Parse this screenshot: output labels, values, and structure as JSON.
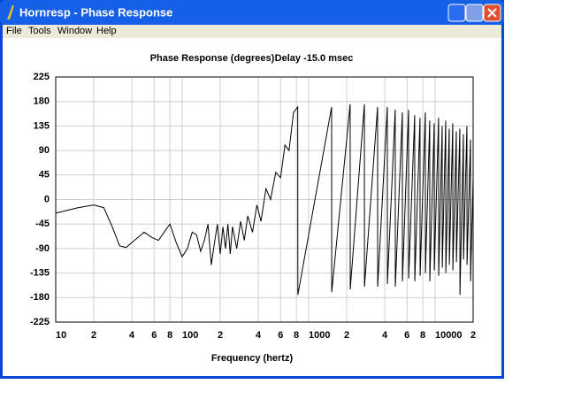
{
  "window": {
    "title": "Hornresp - Phase Response"
  },
  "menu": [
    "File",
    "Tools",
    "Window",
    "Help"
  ],
  "chart_data": {
    "type": "line",
    "title": "Phase Response (degrees)",
    "annotation": "Delay -15.0 msec",
    "x_label": "Frequency (hertz)",
    "xscale": "log",
    "grid": true,
    "xlim": [
      10,
      20000
    ],
    "ylim": [
      -225,
      225
    ],
    "xticks": [
      10,
      {
        "value": 20,
        "label": "2"
      },
      {
        "value": 40,
        "label": "4"
      },
      {
        "value": 60,
        "label": "6"
      },
      {
        "value": 80,
        "label": "8"
      },
      100,
      {
        "value": 200,
        "label": "2"
      },
      {
        "value": 400,
        "label": "4"
      },
      {
        "value": 600,
        "label": "6"
      },
      {
        "value": 800,
        "label": "8"
      },
      1000,
      {
        "value": 2000,
        "label": "2"
      },
      {
        "value": 4000,
        "label": "4"
      },
      {
        "value": 6000,
        "label": "6"
      },
      {
        "value": 8000,
        "label": "8"
      },
      10000,
      {
        "value": 20000,
        "label": "2"
      }
    ],
    "yticks": [
      225,
      180,
      135,
      90,
      45,
      0,
      -45,
      -90,
      -135,
      -180,
      -225
    ],
    "series": [
      {
        "name": "Phase",
        "color": "#000000",
        "x": [
          10,
          15,
          20,
          24,
          28,
          32,
          36,
          42,
          50,
          58,
          65,
          72,
          80,
          90,
          100,
          110,
          120,
          130,
          140,
          150,
          160,
          170,
          180,
          190,
          200,
          210,
          220,
          230,
          240,
          250,
          270,
          290,
          310,
          330,
          360,
          390,
          420,
          460,
          500,
          550,
          600,
          650,
          700,
          760,
          820,
          822,
          1520,
          1523,
          2130,
          2134,
          2760,
          2765,
          3510,
          3517,
          4190,
          4198,
          4840,
          4850,
          5510,
          5521,
          6170,
          6182,
          6900,
          6914,
          7600,
          7615,
          8370,
          8387,
          9070,
          9088,
          9840,
          9860,
          10660,
          10681,
          11380,
          11403,
          12140,
          12164,
          12940,
          12966,
          13800,
          13828,
          14720,
          14749,
          15700,
          15731,
          16750,
          16784,
          17860,
          17896,
          19050,
          19088,
          20000
        ],
        "values": [
          -25,
          -15,
          -10,
          -15,
          -50,
          -85,
          -88,
          -75,
          -60,
          -70,
          -75,
          -60,
          -45,
          -80,
          -105,
          -90,
          -60,
          -65,
          -95,
          -75,
          -45,
          -120,
          -80,
          -45,
          -100,
          -50,
          -90,
          -45,
          -100,
          -50,
          -90,
          -40,
          -75,
          -30,
          -60,
          -10,
          -40,
          20,
          0,
          50,
          40,
          100,
          90,
          160,
          170,
          -175,
          170,
          -170,
          175,
          -165,
          175,
          -160,
          170,
          -160,
          170,
          -155,
          165,
          -160,
          160,
          -150,
          165,
          -145,
          155,
          -150,
          150,
          -140,
          160,
          -135,
          145,
          -150,
          140,
          -130,
          150,
          -140,
          135,
          -125,
          145,
          -135,
          130,
          -120,
          140,
          -130,
          125,
          -115,
          130,
          -175,
          120,
          -110,
          135,
          -120,
          110,
          -150,
          40
        ]
      }
    ]
  }
}
